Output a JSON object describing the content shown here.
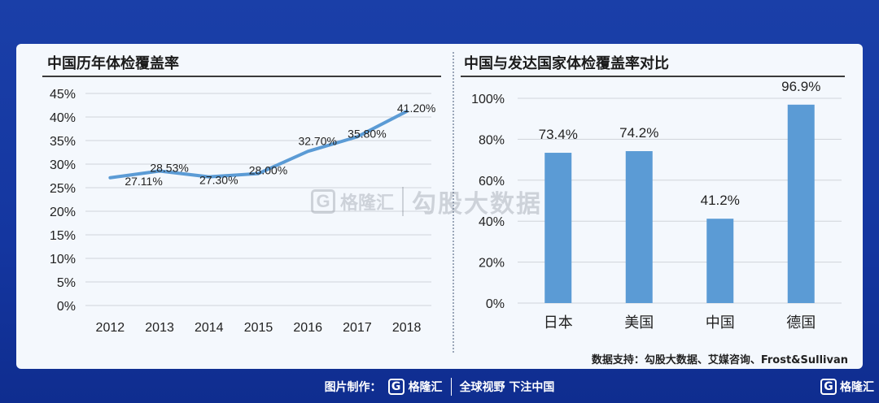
{
  "left_panel": {
    "title": "中国历年体检覆盖率"
  },
  "right_panel": {
    "title": "中国与发达国家体检覆盖率对比"
  },
  "source_text": "数据支持：勾股大数据、艾媒咨询、Frost&Sullivan",
  "watermark": {
    "logo_letter": "G",
    "brand": "格隆汇",
    "text": "勾股大数据"
  },
  "footer": {
    "label": "图片制作：",
    "logo_letter": "G",
    "brand": "格隆汇",
    "slogan": "全球视野 下注中国"
  },
  "corner": {
    "logo_letter": "G",
    "brand": "格隆汇"
  },
  "colors": {
    "background": "#1a3fa8",
    "card": "#f4f8fd",
    "line": "#5b9bd5",
    "bar": "#5b9bd5",
    "grid": "#d0d4da"
  },
  "chart_data": [
    {
      "type": "line",
      "title": "中国历年体检覆盖率",
      "x": [
        "2012",
        "2013",
        "2014",
        "2015",
        "2016",
        "2017",
        "2018"
      ],
      "values": [
        27.11,
        28.53,
        27.3,
        28.0,
        32.7,
        35.8,
        41.2
      ],
      "data_labels": [
        "27.11%",
        "28.53%",
        "27.30%",
        "28.00%",
        "32.70%",
        "35.80%",
        "41.20%"
      ],
      "y_ticks": [
        "45%",
        "40%",
        "35%",
        "30%",
        "25%",
        "20%",
        "15%",
        "10%",
        "5%",
        "0%"
      ],
      "ylim": [
        0,
        45
      ],
      "grid": true
    },
    {
      "type": "bar",
      "title": "中国与发达国家体检覆盖率对比",
      "categories": [
        "日本",
        "美国",
        "中国",
        "德国"
      ],
      "values": [
        73.4,
        74.2,
        41.2,
        96.9
      ],
      "data_labels": [
        "73.4%",
        "74.2%",
        "41.2%",
        "96.9%"
      ],
      "y_ticks": [
        "100%",
        "80%",
        "60%",
        "40%",
        "20%",
        "0%"
      ],
      "ylim": [
        0,
        100
      ],
      "grid": true
    }
  ]
}
